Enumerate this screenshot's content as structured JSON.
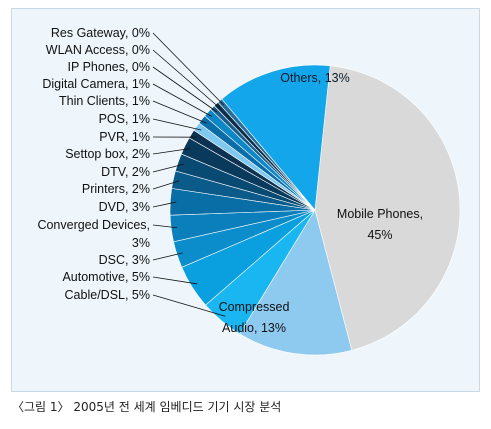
{
  "chart_data": {
    "type": "pie",
    "title": "",
    "slices": [
      {
        "label": "Mobile Phones",
        "value": 45,
        "display": "45%",
        "color": "#d9d9d9"
      },
      {
        "label": "Compressed Audio",
        "value": 13,
        "display": "13%",
        "color": "#8ec9ef"
      },
      {
        "label": "Cable/DSL",
        "value": 5,
        "display": "5%",
        "color": "#19b6f2"
      },
      {
        "label": "Automotive",
        "value": 5,
        "display": "5%",
        "color": "#0aa0e0"
      },
      {
        "label": "DSC",
        "value": 3,
        "display": "3%",
        "color": "#0b8dcc"
      },
      {
        "label": "Converged Devices",
        "value": 3,
        "display": "3%",
        "color": "#0a7fbc"
      },
      {
        "label": "DVD",
        "value": 3,
        "display": "3%",
        "color": "#0a6ea6"
      },
      {
        "label": "Printers",
        "value": 2,
        "display": "2%",
        "color": "#0a5b8a"
      },
      {
        "label": "DTV",
        "value": 2,
        "display": "2%",
        "color": "#094a72"
      },
      {
        "label": "Settop box",
        "value": 2,
        "display": "2%",
        "color": "#093a5c"
      },
      {
        "label": "PVR",
        "value": 1,
        "display": "1%",
        "color": "#0d3150"
      },
      {
        "label": "POS",
        "value": 1,
        "display": "1%",
        "color": "#7fc8f0"
      },
      {
        "label": "Thin Clients",
        "value": 1,
        "display": "1%",
        "color": "#0b6da8"
      },
      {
        "label": "Digital Camera",
        "value": 1,
        "display": "1%",
        "color": "#0c88c8"
      },
      {
        "label": "IP Phones",
        "value": 0,
        "display": "0%",
        "color": "#1a5f8c"
      },
      {
        "label": "WLAN Access",
        "value": 0,
        "display": "0%",
        "color": "#0b2f4a"
      },
      {
        "label": "Res Gateway",
        "value": 0,
        "display": "0%",
        "color": "#2a6e9c"
      },
      {
        "label": "Others",
        "value": 13,
        "display": "13%",
        "color": "#14a6ea"
      }
    ]
  },
  "caption": "〈그림 1〉 2005년 전 세계 임베디드 기기 시장 분석"
}
